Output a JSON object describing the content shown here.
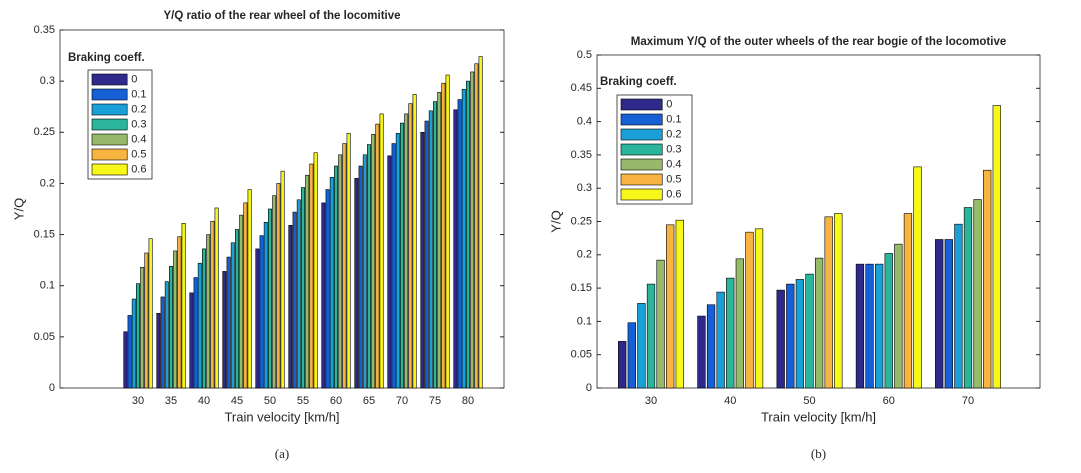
{
  "chart_data": [
    {
      "type": "bar",
      "title": "Y/Q ratio of the rear wheel of the locomitive",
      "x_label": "Train velocity [km/h]",
      "y_label": "Y/Q",
      "caption": "(a)",
      "legend_title": "Braking coeff.",
      "categories": [
        "30",
        "35",
        "40",
        "45",
        "50",
        "55",
        "60",
        "65",
        "70",
        "75",
        "80"
      ],
      "ylim": [
        0,
        0.35
      ],
      "yticks": [
        0,
        0.05,
        0.1,
        0.15,
        0.2,
        0.25,
        0.3,
        0.35
      ],
      "series": [
        {
          "name": "0",
          "color": "#2e2a8c",
          "values": [
            0.055,
            0.073,
            0.093,
            0.114,
            0.136,
            0.159,
            0.181,
            0.205,
            0.227,
            0.25,
            0.272
          ]
        },
        {
          "name": "0.1",
          "color": "#1560d6",
          "values": [
            0.071,
            0.089,
            0.108,
            0.128,
            0.149,
            0.172,
            0.194,
            0.217,
            0.239,
            0.261,
            0.282
          ]
        },
        {
          "name": "0.2",
          "color": "#1aa0d8",
          "values": [
            0.087,
            0.104,
            0.122,
            0.142,
            0.162,
            0.184,
            0.206,
            0.228,
            0.249,
            0.271,
            0.292
          ]
        },
        {
          "name": "0.3",
          "color": "#2bb59a",
          "values": [
            0.102,
            0.119,
            0.136,
            0.155,
            0.175,
            0.196,
            0.217,
            0.238,
            0.259,
            0.28,
            0.3
          ]
        },
        {
          "name": "0.4",
          "color": "#96b96a",
          "values": [
            0.118,
            0.134,
            0.15,
            0.169,
            0.188,
            0.208,
            0.228,
            0.248,
            0.268,
            0.289,
            0.309
          ]
        },
        {
          "name": "0.5",
          "color": "#f7b440",
          "values": [
            0.132,
            0.148,
            0.163,
            0.181,
            0.2,
            0.219,
            0.239,
            0.258,
            0.278,
            0.298,
            0.317
          ]
        },
        {
          "name": "0.6",
          "color": "#f7f71a",
          "values": [
            0.146,
            0.161,
            0.176,
            0.194,
            0.212,
            0.23,
            0.249,
            0.268,
            0.287,
            0.306,
            0.324
          ]
        }
      ]
    },
    {
      "type": "bar",
      "title": "Maximum Y/Q of the outer wheels of the rear bogie of the locomotive",
      "x_label": "Train velocity [km/h]",
      "y_label": "Y/Q",
      "caption": "(b)",
      "legend_title": "Braking coeff.",
      "categories": [
        "30",
        "40",
        "50",
        "60",
        "70"
      ],
      "ylim": [
        0,
        0.5
      ],
      "yticks": [
        0,
        0.05,
        0.1,
        0.15,
        0.2,
        0.25,
        0.3,
        0.35,
        0.4,
        0.45,
        0.5
      ],
      "series": [
        {
          "name": "0",
          "color": "#2e2a8c",
          "values": [
            0.07,
            0.108,
            0.147,
            0.186,
            0.223
          ]
        },
        {
          "name": "0.1",
          "color": "#1560d6",
          "values": [
            0.098,
            0.125,
            0.156,
            0.186,
            0.223
          ]
        },
        {
          "name": "0.2",
          "color": "#1aa0d8",
          "values": [
            0.127,
            0.144,
            0.163,
            0.186,
            0.246
          ]
        },
        {
          "name": "0.3",
          "color": "#2bb59a",
          "values": [
            0.156,
            0.165,
            0.171,
            0.202,
            0.271
          ]
        },
        {
          "name": "0.4",
          "color": "#96b96a",
          "values": [
            0.192,
            0.194,
            0.195,
            0.216,
            0.283
          ]
        },
        {
          "name": "0.5",
          "color": "#f7b440",
          "values": [
            0.245,
            0.234,
            0.257,
            0.262,
            0.327
          ]
        },
        {
          "name": "0.6",
          "color": "#f7f71a",
          "values": [
            0.252,
            0.239,
            0.262,
            0.332,
            0.424
          ]
        }
      ]
    }
  ]
}
